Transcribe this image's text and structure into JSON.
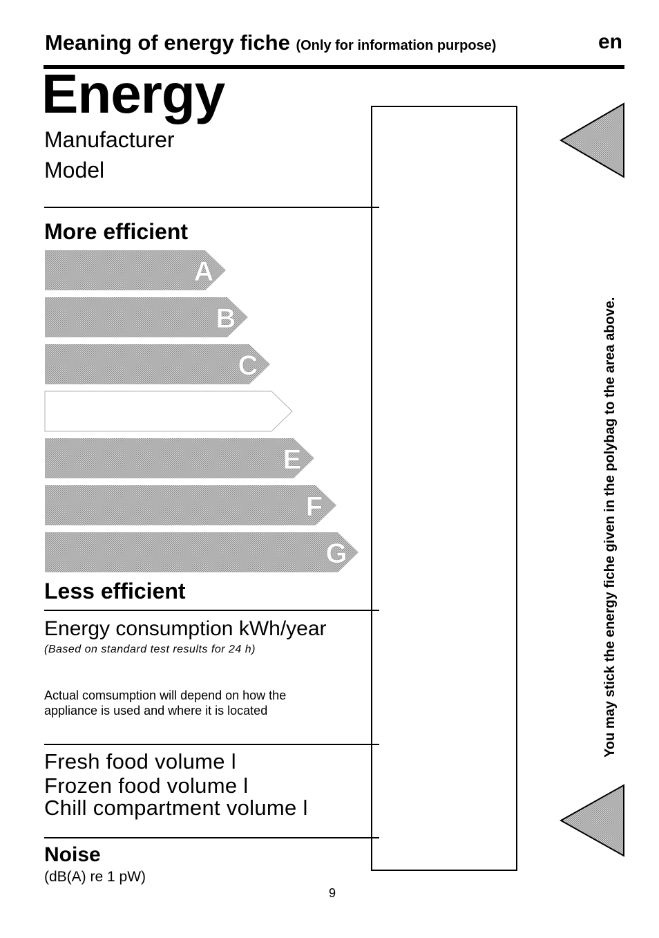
{
  "header": {
    "title": "Meaning of energy fiche",
    "subtitle": "(Only for information purpose)",
    "language": "en"
  },
  "label": {
    "energy_title": "Energy",
    "manufacturer": "Manufacturer",
    "model": "Model",
    "more_efficient": "More efficient",
    "less_efficient": "Less efficient",
    "classes": [
      {
        "letter": "A",
        "filled": true
      },
      {
        "letter": "B",
        "filled": true
      },
      {
        "letter": "C",
        "filled": true
      },
      {
        "letter": "",
        "filled": false
      },
      {
        "letter": "E",
        "filled": true
      },
      {
        "letter": "F",
        "filled": true
      },
      {
        "letter": "G",
        "filled": true
      }
    ],
    "consumption": "Energy consumption kWh/year",
    "consumption_note": "(Based on standard test results for 24 h)",
    "actual_note": "Actual comsumption will depend on how the appliance is used and where it is located",
    "fresh_food": "Fresh food volume l",
    "frozen_food": "Frozen food volume l",
    "chill_compartment": "Chill compartment volume l",
    "noise": "Noise",
    "noise_unit": "(dB(A) re 1 pW)"
  },
  "side_instruction": "You may stick the energy fiche given in the polybag to the area above.",
  "page_number": "9",
  "colors": {
    "bar_dark": "#a8a8a8",
    "bar_light": "#e4e4e4",
    "text": "#000000"
  }
}
